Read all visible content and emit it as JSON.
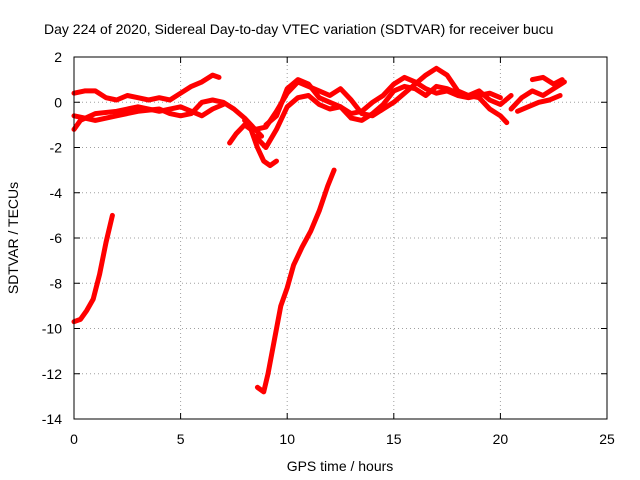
{
  "chart_data": {
    "type": "line",
    "title": "Day 224 of 2020, Sidereal Day-to-day VTEC variation (SDTVAR) for receiver bucu",
    "xlabel": "GPS time / hours",
    "ylabel": "SDTVAR / TECUs",
    "xlim": [
      0,
      25
    ],
    "ylim": [
      -14,
      2
    ],
    "xticks": [
      0,
      5,
      10,
      15,
      20,
      25
    ],
    "yticks": [
      2,
      0,
      -2,
      -4,
      -6,
      -8,
      -10,
      -12,
      -14
    ],
    "grid": true,
    "line_color": "#ff0000",
    "series": [
      {
        "name": "s1",
        "points": [
          [
            0,
            0.4
          ],
          [
            0.5,
            0.5
          ],
          [
            1,
            0.5
          ],
          [
            1.5,
            0.2
          ],
          [
            2,
            0.1
          ],
          [
            2.5,
            0.3
          ],
          [
            3,
            0.2
          ],
          [
            3.5,
            0.1
          ],
          [
            4,
            0.2
          ],
          [
            4.5,
            0.1
          ],
          [
            5,
            0.4
          ],
          [
            5.5,
            0.7
          ],
          [
            6,
            0.9
          ],
          [
            6.5,
            1.2
          ],
          [
            6.8,
            1.1
          ]
        ]
      },
      {
        "name": "s2",
        "points": [
          [
            0,
            -0.6
          ],
          [
            0.5,
            -0.7
          ],
          [
            1,
            -0.8
          ],
          [
            2,
            -0.6
          ],
          [
            3,
            -0.4
          ],
          [
            4,
            -0.3
          ],
          [
            4.5,
            -0.5
          ],
          [
            5,
            -0.6
          ],
          [
            5.5,
            -0.5
          ],
          [
            6,
            0
          ],
          [
            6.5,
            0.1
          ],
          [
            7,
            0
          ],
          [
            7.5,
            -0.3
          ],
          [
            8,
            -0.7
          ],
          [
            8.5,
            -1.2
          ],
          [
            8.8,
            -1.5
          ]
        ]
      },
      {
        "name": "s3",
        "points": [
          [
            0,
            -1.2
          ],
          [
            0.3,
            -0.8
          ],
          [
            1,
            -0.5
          ],
          [
            2,
            -0.4
          ],
          [
            3,
            -0.2
          ],
          [
            4,
            -0.4
          ],
          [
            5,
            -0.2
          ],
          [
            5.5,
            -0.4
          ],
          [
            6,
            -0.6
          ],
          [
            6.5,
            -0.3
          ],
          [
            7,
            -0.1
          ]
        ]
      },
      {
        "name": "s4",
        "points": [
          [
            7.3,
            -1.8
          ],
          [
            7.6,
            -1.4
          ],
          [
            8,
            -1
          ],
          [
            8.3,
            -1.2
          ],
          [
            8.6,
            -2
          ],
          [
            8.9,
            -2.6
          ],
          [
            9.2,
            -2.8
          ],
          [
            9.5,
            -2.6
          ]
        ]
      },
      {
        "name": "s5",
        "points": [
          [
            8,
            -0.8
          ],
          [
            8.5,
            -1.2
          ],
          [
            9,
            -1.1
          ],
          [
            9.5,
            -0.4
          ],
          [
            10,
            0.4
          ],
          [
            10.5,
            0.9
          ],
          [
            11,
            0.7
          ],
          [
            11.5,
            0.5
          ],
          [
            12,
            0.3
          ],
          [
            12.5,
            0.6
          ],
          [
            13,
            0.1
          ],
          [
            13.5,
            -0.5
          ],
          [
            14,
            -0.6
          ],
          [
            14.5,
            -0.3
          ],
          [
            15,
            0
          ],
          [
            15.5,
            0.4
          ],
          [
            16,
            0.8
          ],
          [
            16.5,
            1.2
          ],
          [
            17,
            1.5
          ],
          [
            17.5,
            1.2
          ],
          [
            18,
            0.5
          ],
          [
            18.5,
            0.3
          ],
          [
            19,
            0.5
          ],
          [
            19.5,
            0.1
          ],
          [
            20,
            -0.1
          ],
          [
            20.5,
            0.3
          ]
        ]
      },
      {
        "name": "s6",
        "points": [
          [
            8.5,
            -1.5
          ],
          [
            9,
            -2
          ],
          [
            9.5,
            -1.2
          ],
          [
            10,
            -0.2
          ],
          [
            10.5,
            0.2
          ],
          [
            11,
            0.3
          ],
          [
            11.5,
            -0.1
          ],
          [
            12,
            -0.3
          ],
          [
            12.5,
            -0.2
          ],
          [
            13,
            -0.7
          ],
          [
            13.5,
            -0.8
          ],
          [
            14,
            -0.5
          ],
          [
            14.5,
            -0.1
          ],
          [
            15,
            0.5
          ],
          [
            15.5,
            0.7
          ],
          [
            16,
            0.6
          ],
          [
            16.5,
            0.3
          ],
          [
            17,
            0.7
          ],
          [
            17.5,
            0.6
          ],
          [
            18,
            0.4
          ],
          [
            19,
            0.2
          ],
          [
            19.5,
            -0.3
          ],
          [
            20,
            -0.6
          ],
          [
            20.3,
            -0.9
          ]
        ]
      },
      {
        "name": "s7",
        "points": [
          [
            9,
            -1
          ],
          [
            9.5,
            -0.6
          ],
          [
            10,
            0.6
          ],
          [
            10.5,
            1
          ],
          [
            11,
            0.8
          ],
          [
            11.5,
            0.2
          ],
          [
            12,
            0
          ],
          [
            12.5,
            -0.2
          ],
          [
            13,
            -0.5
          ],
          [
            13.5,
            -0.4
          ],
          [
            14,
            0
          ],
          [
            14.5,
            0.3
          ],
          [
            15,
            0.8
          ],
          [
            15.5,
            1.1
          ],
          [
            16,
            0.9
          ],
          [
            16.5,
            0.6
          ],
          [
            17,
            0.4
          ],
          [
            17.5,
            0.5
          ],
          [
            18,
            0.3
          ],
          [
            18.5,
            0.2
          ],
          [
            19,
            0.3
          ],
          [
            19.5,
            0.4
          ],
          [
            20,
            0.2
          ]
        ]
      },
      {
        "name": "s8",
        "points": [
          [
            20.5,
            -0.3
          ],
          [
            21,
            0.2
          ],
          [
            21.5,
            0.5
          ],
          [
            22,
            0.3
          ],
          [
            22.5,
            0.6
          ],
          [
            23,
            0.9
          ]
        ]
      },
      {
        "name": "s9",
        "points": [
          [
            20.8,
            -0.4
          ],
          [
            21.3,
            -0.2
          ],
          [
            21.8,
            0
          ],
          [
            22.3,
            0.1
          ],
          [
            22.8,
            0.3
          ]
        ]
      },
      {
        "name": "s10",
        "points": [
          [
            21.5,
            1
          ],
          [
            22,
            1.1
          ],
          [
            22.5,
            0.8
          ],
          [
            22.9,
            1
          ]
        ]
      },
      {
        "name": "s11",
        "points": [
          [
            0,
            -9.7
          ],
          [
            0.3,
            -9.6
          ],
          [
            0.6,
            -9.2
          ],
          [
            0.9,
            -8.7
          ],
          [
            1.2,
            -7.6
          ],
          [
            1.5,
            -6.2
          ],
          [
            1.8,
            -5
          ]
        ]
      },
      {
        "name": "s12",
        "points": [
          [
            8.6,
            -12.6
          ],
          [
            8.9,
            -12.8
          ],
          [
            9.1,
            -12
          ],
          [
            9.4,
            -10.5
          ],
          [
            9.7,
            -9
          ],
          [
            10,
            -8.2
          ],
          [
            10.3,
            -7.2
          ],
          [
            10.7,
            -6.4
          ],
          [
            11.1,
            -5.7
          ],
          [
            11.5,
            -4.8
          ],
          [
            11.9,
            -3.7
          ],
          [
            12.2,
            -3
          ]
        ]
      }
    ]
  }
}
